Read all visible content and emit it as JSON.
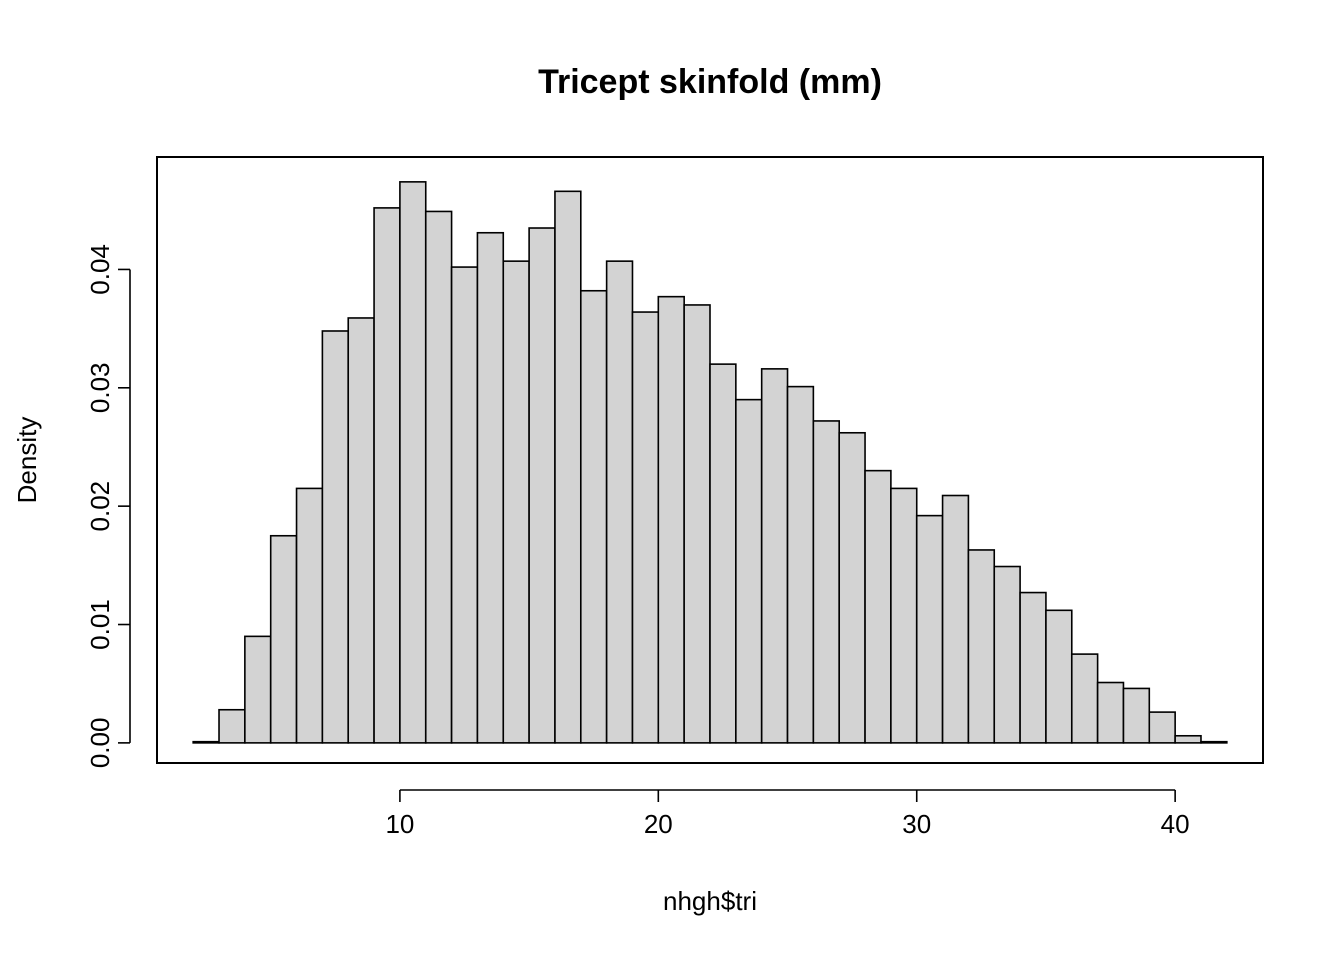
{
  "chart_data": {
    "type": "histogram",
    "title": "Tricept skinfold (mm)",
    "xlabel": "nhgh$tri",
    "ylabel": "Density",
    "xlim": [
      0.6,
      43.4
    ],
    "ylim": [
      -0.0017,
      0.0495
    ],
    "x_ticks": [
      10,
      20,
      30,
      40
    ],
    "x_tick_labels": [
      "10",
      "20",
      "30",
      "40"
    ],
    "y_ticks": [
      0,
      0.01,
      0.02,
      0.03,
      0.04
    ],
    "y_tick_labels": [
      "0.00",
      "0.01",
      "0.02",
      "0.03",
      "0.04"
    ],
    "grid": false,
    "legend": "none",
    "bar_fill": "#d3d3d3",
    "bar_stroke": "#000000",
    "bins": [
      {
        "x0": 2,
        "x1": 3,
        "density": 0.0001
      },
      {
        "x0": 3,
        "x1": 4,
        "density": 0.0028
      },
      {
        "x0": 4,
        "x1": 5,
        "density": 0.009
      },
      {
        "x0": 5,
        "x1": 6,
        "density": 0.0175
      },
      {
        "x0": 6,
        "x1": 7,
        "density": 0.0215
      },
      {
        "x0": 7,
        "x1": 8,
        "density": 0.0348
      },
      {
        "x0": 8,
        "x1": 9,
        "density": 0.0359
      },
      {
        "x0": 9,
        "x1": 10,
        "density": 0.0452
      },
      {
        "x0": 10,
        "x1": 11,
        "density": 0.0474
      },
      {
        "x0": 11,
        "x1": 12,
        "density": 0.0449
      },
      {
        "x0": 12,
        "x1": 13,
        "density": 0.0402
      },
      {
        "x0": 13,
        "x1": 14,
        "density": 0.0431
      },
      {
        "x0": 14,
        "x1": 15,
        "density": 0.0407
      },
      {
        "x0": 15,
        "x1": 16,
        "density": 0.0435
      },
      {
        "x0": 16,
        "x1": 17,
        "density": 0.0466
      },
      {
        "x0": 17,
        "x1": 18,
        "density": 0.0382
      },
      {
        "x0": 18,
        "x1": 19,
        "density": 0.0407
      },
      {
        "x0": 19,
        "x1": 20,
        "density": 0.0364
      },
      {
        "x0": 20,
        "x1": 21,
        "density": 0.0377
      },
      {
        "x0": 21,
        "x1": 22,
        "density": 0.037
      },
      {
        "x0": 22,
        "x1": 23,
        "density": 0.032
      },
      {
        "x0": 23,
        "x1": 24,
        "density": 0.029
      },
      {
        "x0": 24,
        "x1": 25,
        "density": 0.0316
      },
      {
        "x0": 25,
        "x1": 26,
        "density": 0.0301
      },
      {
        "x0": 26,
        "x1": 27,
        "density": 0.0272
      },
      {
        "x0": 27,
        "x1": 28,
        "density": 0.0262
      },
      {
        "x0": 28,
        "x1": 29,
        "density": 0.023
      },
      {
        "x0": 29,
        "x1": 30,
        "density": 0.0215
      },
      {
        "x0": 30,
        "x1": 31,
        "density": 0.0192
      },
      {
        "x0": 31,
        "x1": 32,
        "density": 0.0209
      },
      {
        "x0": 32,
        "x1": 33,
        "density": 0.0163
      },
      {
        "x0": 33,
        "x1": 34,
        "density": 0.0149
      },
      {
        "x0": 34,
        "x1": 35,
        "density": 0.0127
      },
      {
        "x0": 35,
        "x1": 36,
        "density": 0.0112
      },
      {
        "x0": 36,
        "x1": 37,
        "density": 0.0075
      },
      {
        "x0": 37,
        "x1": 38,
        "density": 0.0051
      },
      {
        "x0": 38,
        "x1": 39,
        "density": 0.0046
      },
      {
        "x0": 39,
        "x1": 40,
        "density": 0.0026
      },
      {
        "x0": 40,
        "x1": 41,
        "density": 0.0006
      },
      {
        "x0": 41,
        "x1": 42,
        "density": 0.0001
      }
    ]
  }
}
